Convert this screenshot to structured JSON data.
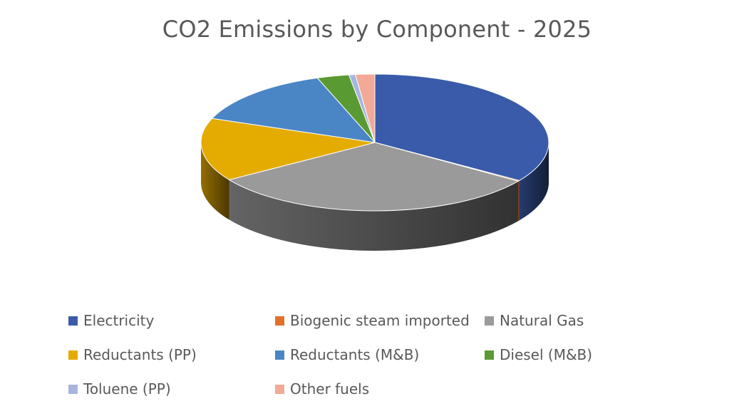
{
  "chart_data": {
    "type": "pie",
    "title": "CO2 Emissions by Component - 2025",
    "three_d": true,
    "legend_position": "bottom",
    "unit": "share",
    "slices": [
      {
        "label": "Electricity",
        "value": 34.6,
        "color": "#3A5BA9"
      },
      {
        "label": "Biogenic steam imported",
        "value": 0.2,
        "color": "#E2712B"
      },
      {
        "label": "Natural Gas",
        "value": 31.4,
        "color": "#9A9A9A"
      },
      {
        "label": "Reductants (PP)",
        "value": 15.0,
        "color": "#E4AB00"
      },
      {
        "label": "Reductants (M&B)",
        "value": 14.0,
        "color": "#4A86C5"
      },
      {
        "label": "Diesel (M&B)",
        "value": 3.0,
        "color": "#5A9A32"
      },
      {
        "label": "Toluene (PP)",
        "value": 0.6,
        "color": "#A7B5DF"
      },
      {
        "label": "Other fuels",
        "value": 1.8,
        "color": "#F2A997"
      }
    ]
  }
}
